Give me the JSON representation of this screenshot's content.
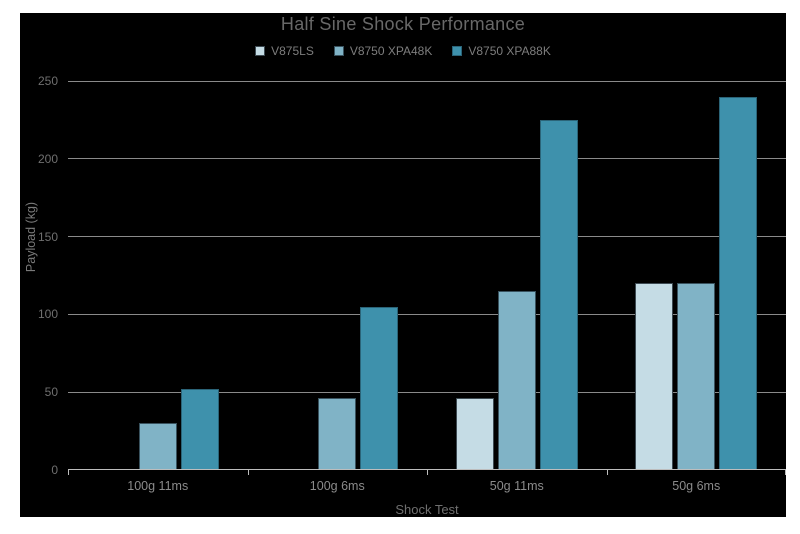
{
  "chart_data": {
    "type": "bar",
    "title": "Half Sine Shock Performance",
    "xlabel": "Shock Test",
    "ylabel": "Payload (kg)",
    "categories": [
      "100g 11ms",
      "100g 6ms",
      "50g 11ms",
      "50g 6ms"
    ],
    "series": [
      {
        "name": "V875LS",
        "color": "#c5dce5",
        "border": "#3d4a52",
        "values": [
          0,
          0,
          46,
          120
        ]
      },
      {
        "name": "V8750 XPA48K",
        "color": "#80b3c6",
        "border": "#39525e",
        "values": [
          30,
          46,
          115,
          120
        ]
      },
      {
        "name": "V8750 XPA88K",
        "color": "#3e91ac",
        "border": "#2b6478",
        "values": [
          52,
          105,
          225,
          240
        ]
      }
    ],
    "ylim": [
      0,
      250
    ],
    "yticks": [
      0,
      50,
      100,
      150,
      200,
      250
    ],
    "grid": true,
    "legend_position": "top-center",
    "units": "kg"
  },
  "theme": {
    "page_background": "#ffffff",
    "plot_background": "#000000",
    "title_color": "#686868",
    "tick_label_color": "#6f6f6f",
    "category_label_color": "#8b8b8b",
    "axis_title_color": "#7a7a7a",
    "legend_label_color": "#7d7d7d",
    "gridline_color": "#8a8a8a",
    "axis_line_color": "#bdbdbd"
  }
}
